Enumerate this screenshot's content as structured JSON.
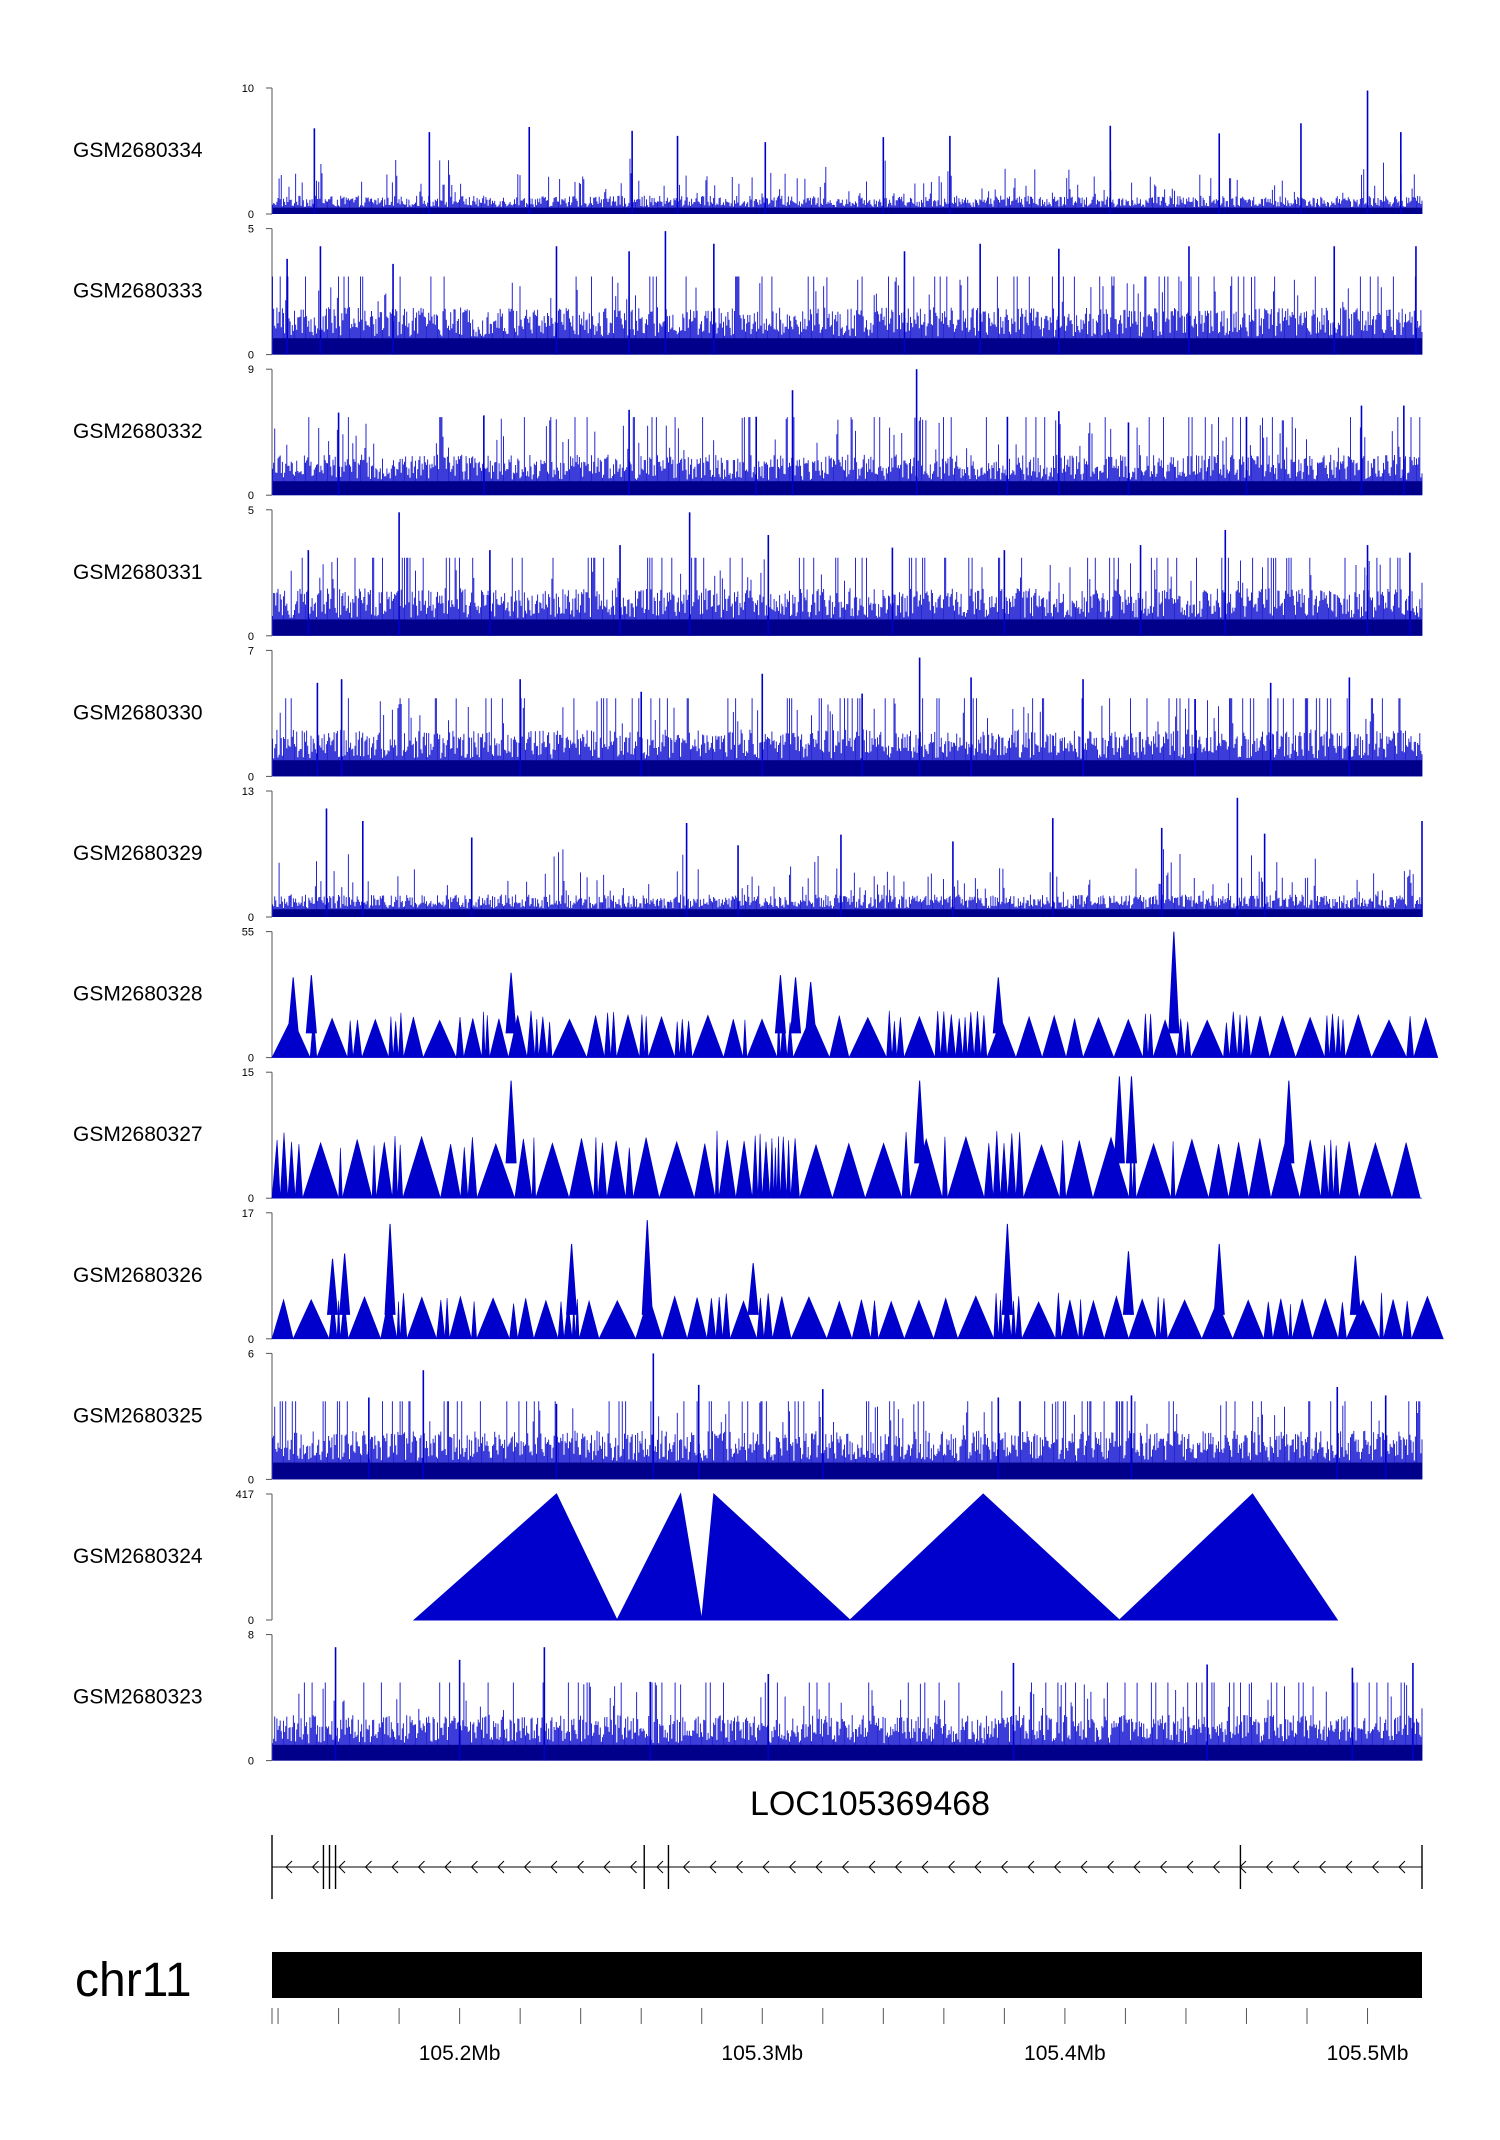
{
  "chart_data": {
    "type": "area",
    "colors": {
      "signal": "#0000cc",
      "axis": "#555555",
      "ideogram": "#000000"
    },
    "region": {
      "chrom": "chr11",
      "start": 105138000,
      "end": 105518000
    },
    "tracks": [
      {
        "name": "GSM2680334",
        "ymax": "10",
        "ymin": "0",
        "style": "bars",
        "base": 1.0,
        "peaks": [
          [
            105152000,
            6.8
          ],
          [
            105190000,
            6.5
          ],
          [
            105223000,
            6.9
          ],
          [
            105257000,
            6.6
          ],
          [
            105272000,
            6.2
          ],
          [
            105301000,
            5.7
          ],
          [
            105340000,
            6.1
          ],
          [
            105362000,
            6.2
          ],
          [
            105415000,
            7.0
          ],
          [
            105451000,
            6.4
          ],
          [
            105478000,
            7.2
          ],
          [
            105500000,
            9.8
          ],
          [
            105511000,
            6.5
          ]
        ]
      },
      {
        "name": "GSM2680333",
        "ymax": "5",
        "ymin": "0",
        "style": "bars",
        "base": 1.3,
        "peaks": [
          [
            105143000,
            3.8
          ],
          [
            105154000,
            4.3
          ],
          [
            105178000,
            3.6
          ],
          [
            105232000,
            4.3
          ],
          [
            105256000,
            4.1
          ],
          [
            105268000,
            4.9
          ],
          [
            105284000,
            4.4
          ],
          [
            105347000,
            4.1
          ],
          [
            105372000,
            4.4
          ],
          [
            105398000,
            4.2
          ],
          [
            105441000,
            4.3
          ],
          [
            105489000,
            4.3
          ],
          [
            105516000,
            4.3
          ]
        ]
      },
      {
        "name": "GSM2680332",
        "ymax": "9",
        "ymin": "0",
        "style": "bars",
        "base": 2.0,
        "peaks": [
          [
            105160000,
            5.9
          ],
          [
            105208000,
            5.7
          ],
          [
            105256000,
            6.1
          ],
          [
            105298000,
            5.6
          ],
          [
            105310000,
            7.5
          ],
          [
            105351000,
            9.0
          ],
          [
            105381000,
            5.6
          ],
          [
            105398000,
            6.0
          ],
          [
            105421000,
            5.2
          ],
          [
            105460000,
            5.6
          ],
          [
            105498000,
            6.4
          ],
          [
            105512000,
            6.4
          ]
        ]
      },
      {
        "name": "GSM2680331",
        "ymax": "5",
        "ymin": "0",
        "style": "bars",
        "base": 1.3,
        "peaks": [
          [
            105150000,
            3.4
          ],
          [
            105180000,
            4.9
          ],
          [
            105210000,
            3.4
          ],
          [
            105253000,
            3.6
          ],
          [
            105276000,
            4.9
          ],
          [
            105302000,
            4.0
          ],
          [
            105343000,
            3.5
          ],
          [
            105380000,
            3.4
          ],
          [
            105425000,
            3.6
          ],
          [
            105453000,
            4.2
          ],
          [
            105500000,
            3.6
          ],
          [
            105514000,
            3.3
          ]
        ]
      },
      {
        "name": "GSM2680330",
        "ymax": "7",
        "ymin": "0",
        "style": "bars",
        "base": 1.8,
        "peaks": [
          [
            105153000,
            5.2
          ],
          [
            105161000,
            5.4
          ],
          [
            105220000,
            5.4
          ],
          [
            105260000,
            4.7
          ],
          [
            105300000,
            5.7
          ],
          [
            105333000,
            4.6
          ],
          [
            105352000,
            6.6
          ],
          [
            105369000,
            5.5
          ],
          [
            105406000,
            5.4
          ],
          [
            105443000,
            4.3
          ],
          [
            105468000,
            5.2
          ],
          [
            105494000,
            5.5
          ]
        ]
      },
      {
        "name": "GSM2680329",
        "ymax": "13",
        "ymin": "0",
        "style": "bars",
        "base": 1.6,
        "peaks": [
          [
            105156000,
            11.2
          ],
          [
            105168000,
            9.9
          ],
          [
            105204000,
            8.2
          ],
          [
            105275000,
            9.7
          ],
          [
            105292000,
            7.4
          ],
          [
            105326000,
            8.5
          ],
          [
            105363000,
            7.8
          ],
          [
            105396000,
            10.2
          ],
          [
            105432000,
            9.2
          ],
          [
            105457000,
            12.3
          ],
          [
            105466000,
            8.6
          ],
          [
            105518000,
            9.9
          ]
        ]
      },
      {
        "name": "GSM2680328",
        "ymax": "55",
        "ymin": "0",
        "style": "triangles",
        "base": 18.0,
        "peaks": [
          [
            105145000,
            35.0
          ],
          [
            105151000,
            36.0
          ],
          [
            105217000,
            37.0
          ],
          [
            105306000,
            36.0
          ],
          [
            105311000,
            35.0
          ],
          [
            105316000,
            33.0
          ],
          [
            105378000,
            35.0
          ],
          [
            105436000,
            55.0
          ]
        ]
      },
      {
        "name": "GSM2680327",
        "ymax": "15",
        "ymin": "0",
        "style": "triangles",
        "base": 7.0,
        "peaks": [
          [
            105217000,
            14.0
          ],
          [
            105352000,
            14.0
          ],
          [
            105418000,
            14.5
          ],
          [
            105422000,
            14.5
          ],
          [
            105474000,
            14.0
          ]
        ]
      },
      {
        "name": "GSM2680326",
        "ymax": "17",
        "ymin": "0",
        "style": "triangles",
        "base": 5.5,
        "peaks": [
          [
            105158000,
            10.8
          ],
          [
            105162000,
            11.5
          ],
          [
            105177000,
            15.5
          ],
          [
            105237000,
            12.8
          ],
          [
            105262000,
            16.0
          ],
          [
            105297000,
            10.2
          ],
          [
            105381000,
            15.5
          ],
          [
            105421000,
            11.8
          ],
          [
            105451000,
            12.8
          ],
          [
            105496000,
            11.2
          ]
        ]
      },
      {
        "name": "GSM2680325",
        "ymax": "6",
        "ymin": "0",
        "style": "bars",
        "base": 1.6,
        "peaks": [
          [
            105170000,
            3.9
          ],
          [
            105188000,
            5.2
          ],
          [
            105232000,
            3.6
          ],
          [
            105264000,
            6.0
          ],
          [
            105279000,
            4.5
          ],
          [
            105320000,
            4.3
          ],
          [
            105378000,
            3.9
          ],
          [
            105422000,
            4.0
          ],
          [
            105490000,
            4.4
          ],
          [
            105506000,
            4.0
          ]
        ]
      },
      {
        "name": "GSM2680324",
        "ymax": "417",
        "ymin": "0",
        "style": "polygon",
        "points": [
          [
            105185000,
            0
          ],
          [
            105232000,
            417
          ],
          [
            105252000,
            0
          ],
          [
            105273000,
            417
          ],
          [
            105280000,
            0
          ],
          [
            105284000,
            417
          ],
          [
            105329000,
            0
          ],
          [
            105373000,
            417
          ],
          [
            105418000,
            0
          ],
          [
            105462000,
            417
          ],
          [
            105490000,
            0
          ]
        ]
      },
      {
        "name": "GSM2680323",
        "ymax": "8",
        "ymin": "0",
        "style": "bars",
        "base": 2.0,
        "peaks": [
          [
            105159000,
            7.2
          ],
          [
            105200000,
            6.4
          ],
          [
            105228000,
            7.2
          ],
          [
            105263000,
            5.0
          ],
          [
            105302000,
            5.5
          ],
          [
            105383000,
            6.2
          ],
          [
            105447000,
            6.1
          ],
          [
            105495000,
            5.9
          ],
          [
            105515000,
            6.2
          ]
        ]
      }
    ],
    "gene": {
      "name": "LOC105369468",
      "strand": "-",
      "exons": [
        105138000,
        105155000,
        105157000,
        105159000,
        105261000,
        105269000,
        105458000,
        105518000
      ]
    },
    "chromosome": "chr11",
    "xaxis": {
      "tick_labels": [
        "105.2Mb",
        "105.3Mb",
        "105.4Mb",
        "105.5Mb"
      ],
      "tick_values": [
        105200000,
        105300000,
        105400000,
        105500000
      ],
      "minor_step": 20000
    }
  }
}
